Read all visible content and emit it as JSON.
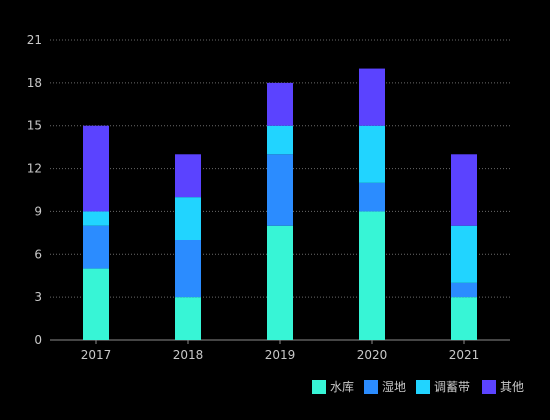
{
  "chart_data": {
    "type": "bar",
    "stacked": true,
    "categories": [
      "2017",
      "2018",
      "2019",
      "2020",
      "2021"
    ],
    "series": [
      {
        "name": "水库",
        "color": "#37f5d6",
        "values": [
          5,
          3,
          8,
          9,
          3
        ]
      },
      {
        "name": "湿地",
        "color": "#2b8cff",
        "values": [
          3,
          4,
          5,
          2,
          1
        ]
      },
      {
        "name": "调蓄带",
        "color": "#21d4ff",
        "values": [
          1,
          3,
          2,
          4,
          4
        ]
      },
      {
        "name": "其他",
        "color": "#5b43ff",
        "values": [
          6,
          3,
          3,
          4,
          5
        ]
      }
    ],
    "yticks": [
      0,
      3,
      6,
      9,
      12,
      15,
      18,
      21
    ],
    "ylim": [
      0,
      21
    ],
    "grid": true,
    "grid_style": "dotted",
    "legend_position": "bottom-right",
    "title": "",
    "xlabel": "",
    "ylabel": ""
  }
}
